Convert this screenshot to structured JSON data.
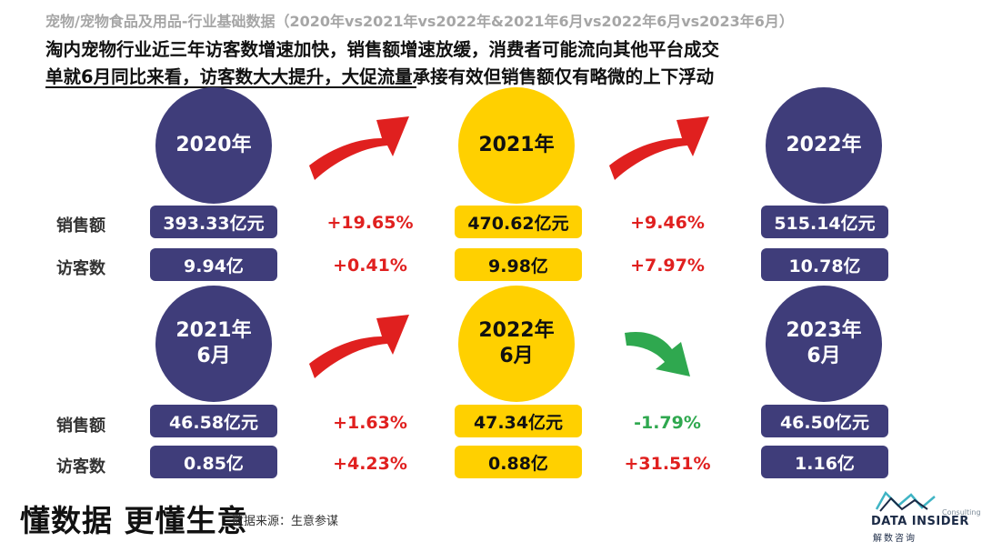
{
  "header": {
    "caption": "宠物/宠物食品及用品-行业基础数据（2020年vs2021年vs2022年&2021年6月vs2022年6月vs2023年6月）",
    "headline_line1": "淘内宠物行业近三年访客数增速加快，销售额增速放缓，消费者可能流向其他平台成交",
    "headline_line2": "单就6月同比来看，访客数大大提升，大促流量承接有效但销售额仅有略微的上下浮动"
  },
  "labels": {
    "sales": "销售额",
    "visitors": "访客数"
  },
  "annual": {
    "periods": [
      {
        "line1": "2020年",
        "line2": "",
        "sales": "393.33亿元",
        "visitors": "9.94亿"
      },
      {
        "line1": "2021年",
        "line2": "",
        "sales": "470.62亿元",
        "visitors": "9.98亿"
      },
      {
        "line1": "2022年",
        "line2": "",
        "sales": "515.14亿元",
        "visitors": "10.78亿"
      }
    ],
    "growth": [
      {
        "sales": "+19.65%",
        "visitors": "+0.41%"
      },
      {
        "sales": "+9.46%",
        "visitors": "+7.97%"
      }
    ]
  },
  "june": {
    "periods": [
      {
        "line1": "2021年",
        "line2": "6月",
        "sales": "46.58亿元",
        "visitors": "0.85亿"
      },
      {
        "line1": "2022年",
        "line2": "6月",
        "sales": "47.34亿元",
        "visitors": "0.88亿"
      },
      {
        "line1": "2023年",
        "line2": "6月",
        "sales": "46.50亿元",
        "visitors": "1.16亿"
      }
    ],
    "growth": [
      {
        "sales": "+1.63%",
        "visitors": "+4.23%"
      },
      {
        "sales": "-1.79%",
        "visitors": "+31.51%"
      }
    ]
  },
  "colors": {
    "navy": "#3f3d7a",
    "gold": "#ffd000",
    "red": "#e0201f",
    "green": "#2fa84f"
  },
  "footer": {
    "slogan": "懂数据 更懂生意",
    "source": "数据来源：生意参谋",
    "logo_sub": "Consulting",
    "logo_name": "DATA INSIDER",
    "logo_cn": "解数咨询"
  }
}
